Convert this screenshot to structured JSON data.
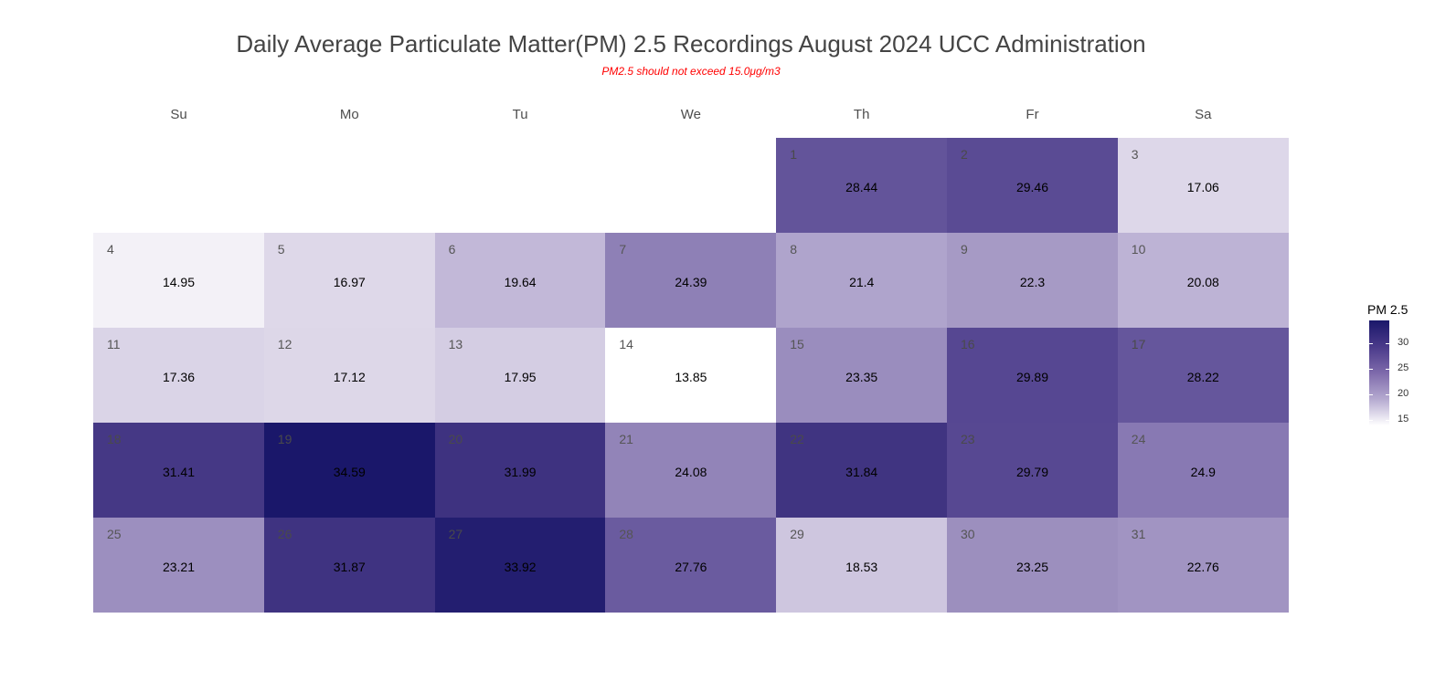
{
  "chart_data": {
    "type": "heatmap",
    "title": "Daily Average Particulate Matter(PM) 2.5 Recordings August 2024 UCC Administration",
    "subtitle": "PM2.5 should not exceed 15.0μg/m3",
    "weekdays": [
      "Su",
      "Mo",
      "Tu",
      "We",
      "Th",
      "Fr",
      "Sa"
    ],
    "first_weekday_index": 4,
    "days": [
      {
        "day": 1,
        "value": 28.44
      },
      {
        "day": 2,
        "value": 29.46
      },
      {
        "day": 3,
        "value": 17.06
      },
      {
        "day": 4,
        "value": 14.95
      },
      {
        "day": 5,
        "value": 16.97
      },
      {
        "day": 6,
        "value": 19.64
      },
      {
        "day": 7,
        "value": 24.39
      },
      {
        "day": 8,
        "value": 21.4
      },
      {
        "day": 9,
        "value": 22.3
      },
      {
        "day": 10,
        "value": 20.08
      },
      {
        "day": 11,
        "value": 17.36
      },
      {
        "day": 12,
        "value": 17.12
      },
      {
        "day": 13,
        "value": 17.95
      },
      {
        "day": 14,
        "value": 13.85
      },
      {
        "day": 15,
        "value": 23.35
      },
      {
        "day": 16,
        "value": 29.89
      },
      {
        "day": 17,
        "value": 28.22
      },
      {
        "day": 18,
        "value": 31.41
      },
      {
        "day": 19,
        "value": 34.59
      },
      {
        "day": 20,
        "value": 31.99
      },
      {
        "day": 21,
        "value": 24.08
      },
      {
        "day": 22,
        "value": 31.84
      },
      {
        "day": 23,
        "value": 29.79
      },
      {
        "day": 24,
        "value": 24.9
      },
      {
        "day": 25,
        "value": 23.21
      },
      {
        "day": 26,
        "value": 31.87
      },
      {
        "day": 27,
        "value": 33.92
      },
      {
        "day": 28,
        "value": 27.76
      },
      {
        "day": 29,
        "value": 18.53
      },
      {
        "day": 30,
        "value": 23.25
      },
      {
        "day": 31,
        "value": 22.76
      }
    ],
    "legend": {
      "title": "PM 2.5",
      "ticks": [
        30,
        25,
        20,
        15
      ],
      "range": [
        13.85,
        34.59
      ],
      "color_low": "#ffffff",
      "color_high": "#1a176a",
      "placement": "right"
    }
  }
}
